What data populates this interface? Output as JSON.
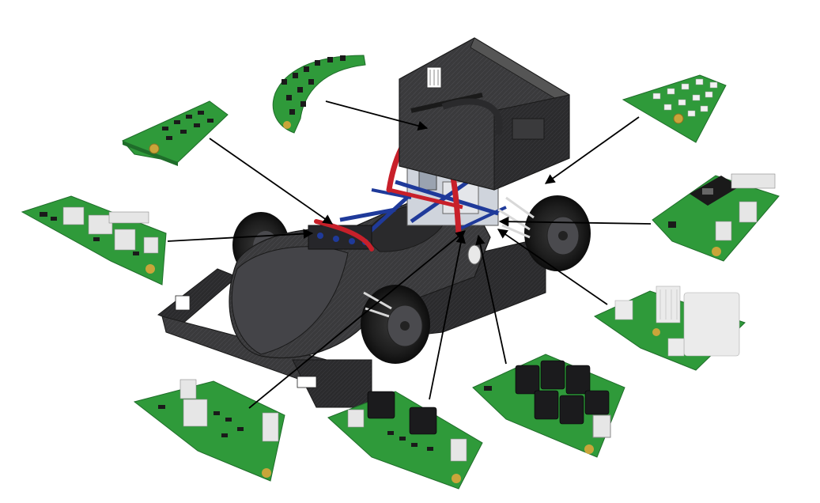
{
  "figure": {
    "subject": "formula-student-race-car",
    "colors": {
      "car_body": "#3c3c3e",
      "car_body_dark": "#262628",
      "car_body_light": "#5a5a5e",
      "roll_hoop": "#c8202a",
      "frame": "#1f3a9a",
      "tire": "#1c1c1c",
      "rim": "#4a4a4e",
      "pcb_green": "#2f9a3a",
      "pcb_dark": "#1f6d2a",
      "pcb_edge": "#c9a53a",
      "connector": "#e6e6e6",
      "chip": "#1a1a1a",
      "relay": "#1b1b1d",
      "leader_line": "#000000"
    },
    "boards": [
      {
        "id": "board-top-left-slim",
        "icon": "pcb-icon"
      },
      {
        "id": "board-top-arc",
        "icon": "pcb-icon"
      },
      {
        "id": "board-top-right-leds",
        "icon": "pcb-icon"
      },
      {
        "id": "board-left-connectors",
        "icon": "pcb-icon"
      },
      {
        "id": "board-right-mcu",
        "icon": "pcb-icon"
      },
      {
        "id": "board-right-heatsink",
        "icon": "pcb-icon"
      },
      {
        "id": "board-bottom-right-relays",
        "icon": "pcb-icon"
      },
      {
        "id": "board-bottom-center-inductors",
        "icon": "pcb-icon"
      },
      {
        "id": "board-bottom-left-connectors",
        "icon": "pcb-icon"
      }
    ]
  }
}
